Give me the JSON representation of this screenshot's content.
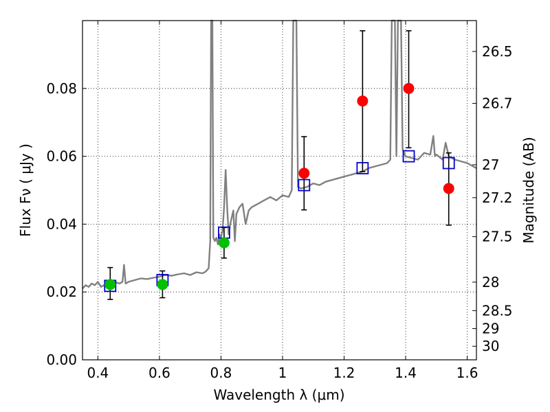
{
  "chart_data": {
    "type": "scatter",
    "xlabel": "Wavelength  λ (μm)",
    "ylabel": "Flux  Fν  ( μJy )",
    "y2label": "Magnitude (AB)",
    "xlim": [
      0.35,
      1.63
    ],
    "ylim": [
      0.0,
      0.1
    ],
    "grid": true,
    "x_ticks": [
      {
        "value": 0.4,
        "label": "0.4"
      },
      {
        "value": 0.6,
        "label": "0.6"
      },
      {
        "value": 0.8,
        "label": "0.8"
      },
      {
        "value": 1.0,
        "label": "1"
      },
      {
        "value": 1.2,
        "label": "1.2"
      },
      {
        "value": 1.4,
        "label": "1.4"
      },
      {
        "value": 1.6,
        "label": "1.6"
      }
    ],
    "y_ticks": [
      {
        "value": 0.0,
        "label": "0.00"
      },
      {
        "value": 0.02,
        "label": "0.02"
      },
      {
        "value": 0.04,
        "label": "0.04"
      },
      {
        "value": 0.06,
        "label": "0.06"
      },
      {
        "value": 0.08,
        "label": "0.08"
      }
    ],
    "y2_ticks": [
      {
        "flux": 0.0909,
        "label": "26.5"
      },
      {
        "flux": 0.0756,
        "label": "26.7"
      },
      {
        "flux": 0.0575,
        "label": "27"
      },
      {
        "flux": 0.0478,
        "label": "27.2"
      },
      {
        "flux": 0.0363,
        "label": "27.5"
      },
      {
        "flux": 0.0229,
        "label": "28"
      },
      {
        "flux": 0.0145,
        "label": "28.5"
      },
      {
        "flux": 0.0092,
        "label": "29"
      },
      {
        "flux": 0.004,
        "label": "30"
      }
    ],
    "spectrum": {
      "color": "#808080",
      "points": [
        [
          0.35,
          0.021
        ],
        [
          0.36,
          0.022
        ],
        [
          0.37,
          0.0215
        ],
        [
          0.38,
          0.0225
        ],
        [
          0.39,
          0.022
        ],
        [
          0.4,
          0.023
        ],
        [
          0.41,
          0.0215
        ],
        [
          0.42,
          0.022
        ],
        [
          0.43,
          0.0225
        ],
        [
          0.44,
          0.023
        ],
        [
          0.45,
          0.022
        ],
        [
          0.46,
          0.0228
        ],
        [
          0.47,
          0.0225
        ],
        [
          0.48,
          0.023
        ],
        [
          0.485,
          0.028
        ],
        [
          0.49,
          0.0225
        ],
        [
          0.5,
          0.023
        ],
        [
          0.52,
          0.0235
        ],
        [
          0.54,
          0.024
        ],
        [
          0.56,
          0.0238
        ],
        [
          0.58,
          0.0242
        ],
        [
          0.6,
          0.0245
        ],
        [
          0.62,
          0.025
        ],
        [
          0.64,
          0.0248
        ],
        [
          0.66,
          0.0252
        ],
        [
          0.68,
          0.0255
        ],
        [
          0.7,
          0.025
        ],
        [
          0.72,
          0.0258
        ],
        [
          0.74,
          0.0255
        ],
        [
          0.75,
          0.026
        ],
        [
          0.76,
          0.027
        ],
        [
          0.765,
          0.035
        ],
        [
          0.768,
          0.1
        ],
        [
          0.772,
          0.1
        ],
        [
          0.775,
          0.036
        ],
        [
          0.78,
          0.035
        ],
        [
          0.785,
          0.036
        ],
        [
          0.79,
          0.034
        ],
        [
          0.795,
          0.037
        ],
        [
          0.8,
          0.036
        ],
        [
          0.805,
          0.038
        ],
        [
          0.81,
          0.045
        ],
        [
          0.815,
          0.056
        ],
        [
          0.82,
          0.045
        ],
        [
          0.825,
          0.037
        ],
        [
          0.83,
          0.04
        ],
        [
          0.84,
          0.044
        ],
        [
          0.845,
          0.035
        ],
        [
          0.85,
          0.043
        ],
        [
          0.86,
          0.045
        ],
        [
          0.87,
          0.046
        ],
        [
          0.88,
          0.04
        ],
        [
          0.89,
          0.044
        ],
        [
          0.9,
          0.045
        ],
        [
          0.92,
          0.046
        ],
        [
          0.94,
          0.047
        ],
        [
          0.96,
          0.048
        ],
        [
          0.98,
          0.047
        ],
        [
          1.0,
          0.0485
        ],
        [
          1.02,
          0.048
        ],
        [
          1.03,
          0.05
        ],
        [
          1.035,
          0.1
        ],
        [
          1.045,
          0.1
        ],
        [
          1.05,
          0.051
        ],
        [
          1.06,
          0.0505
        ],
        [
          1.08,
          0.051
        ],
        [
          1.1,
          0.052
        ],
        [
          1.12,
          0.0515
        ],
        [
          1.14,
          0.0525
        ],
        [
          1.16,
          0.053
        ],
        [
          1.18,
          0.0535
        ],
        [
          1.2,
          0.054
        ],
        [
          1.22,
          0.0545
        ],
        [
          1.24,
          0.055
        ],
        [
          1.26,
          0.0555
        ],
        [
          1.28,
          0.0565
        ],
        [
          1.3,
          0.057
        ],
        [
          1.32,
          0.0575
        ],
        [
          1.34,
          0.058
        ],
        [
          1.35,
          0.059
        ],
        [
          1.355,
          0.1
        ],
        [
          1.365,
          0.1
        ],
        [
          1.37,
          0.06
        ],
        [
          1.375,
          0.1
        ],
        [
          1.385,
          0.1
        ],
        [
          1.39,
          0.062
        ],
        [
          1.4,
          0.06
        ],
        [
          1.42,
          0.0595
        ],
        [
          1.44,
          0.059
        ],
        [
          1.46,
          0.061
        ],
        [
          1.48,
          0.0605
        ],
        [
          1.49,
          0.066
        ],
        [
          1.495,
          0.06
        ],
        [
          1.5,
          0.0605
        ],
        [
          1.52,
          0.059
        ],
        [
          1.53,
          0.064
        ],
        [
          1.54,
          0.06
        ],
        [
          1.56,
          0.059
        ],
        [
          1.58,
          0.0585
        ],
        [
          1.6,
          0.058
        ],
        [
          1.62,
          0.057
        ],
        [
          1.63,
          0.0565
        ]
      ]
    },
    "model_points": {
      "color": "#0000cc",
      "marker": "open-square",
      "points": [
        {
          "x": 0.44,
          "y": 0.0218
        },
        {
          "x": 0.61,
          "y": 0.0235
        },
        {
          "x": 0.81,
          "y": 0.0375
        },
        {
          "x": 1.07,
          "y": 0.0515
        },
        {
          "x": 1.26,
          "y": 0.0565
        },
        {
          "x": 1.41,
          "y": 0.06
        },
        {
          "x": 1.54,
          "y": 0.058
        }
      ]
    },
    "detections": [
      {
        "x": 0.44,
        "y": 0.0222,
        "yerr_low": 0.0178,
        "yerr_high": 0.0272,
        "color": "#00c000"
      },
      {
        "x": 0.61,
        "y": 0.0222,
        "yerr_low": 0.0183,
        "yerr_high": 0.0262,
        "color": "#00c000"
      },
      {
        "x": 0.81,
        "y": 0.0345,
        "yerr_low": 0.03,
        "yerr_high": 0.039,
        "color": "#00c000"
      },
      {
        "x": 1.07,
        "y": 0.055,
        "yerr_low": 0.0442,
        "yerr_high": 0.0658,
        "color": "#ff0000"
      },
      {
        "x": 1.26,
        "y": 0.0763,
        "yerr_low": 0.0555,
        "yerr_high": 0.097,
        "color": "#ff0000"
      },
      {
        "x": 1.41,
        "y": 0.08,
        "yerr_low": 0.0625,
        "yerr_high": 0.097,
        "color": "#ff0000"
      },
      {
        "x": 1.54,
        "y": 0.0505,
        "yerr_low": 0.0397,
        "yerr_high": 0.061,
        "color": "#ff0000"
      }
    ]
  }
}
